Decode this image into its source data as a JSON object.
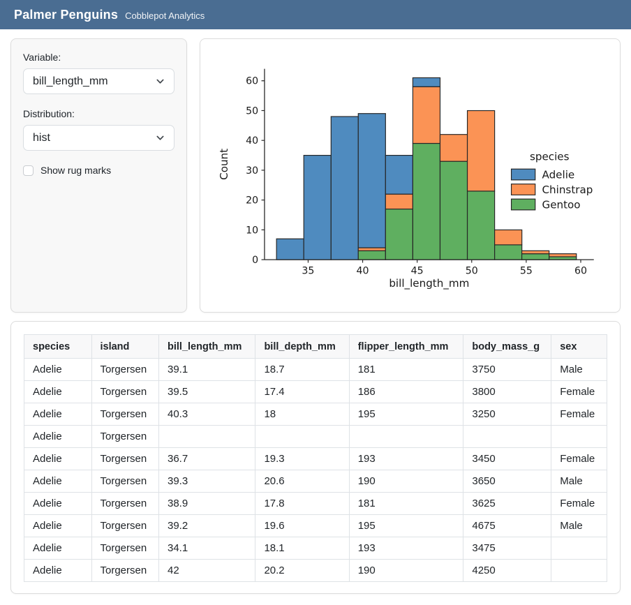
{
  "header": {
    "title": "Palmer Penguins",
    "subtitle": "Cobblepot Analytics"
  },
  "sidebar": {
    "variable_label": "Variable:",
    "variable_value": "bill_length_mm",
    "distribution_label": "Distribution:",
    "distribution_value": "hist",
    "rug_label": "Show rug marks",
    "rug_checked": false
  },
  "colors": {
    "navbar": "#4a6d92",
    "adelie": "#4f8bbf",
    "chinstrap": "#fb9355",
    "gentoo": "#5faf60",
    "bar_edge": "#262626",
    "axis": "#262626"
  },
  "chart_data": {
    "type": "bar",
    "subtype": "stacked-histogram",
    "title": "",
    "xlabel": "bill_length_mm",
    "ylabel": "Count",
    "bin_edges": [
      32.1,
      34.6,
      37.1,
      39.6,
      42.1,
      44.6,
      47.1,
      49.6,
      52.1,
      54.6,
      57.1,
      59.6
    ],
    "series": [
      {
        "name": "Adelie",
        "color": "#4f8bbf",
        "values": [
          7,
          35,
          48,
          45,
          13,
          3,
          0,
          0,
          0,
          0,
          0
        ]
      },
      {
        "name": "Chinstrap",
        "color": "#fb9355",
        "values": [
          0,
          0,
          0,
          1,
          5,
          19,
          9,
          27,
          5,
          1,
          1
        ]
      },
      {
        "name": "Gentoo",
        "color": "#5faf60",
        "values": [
          0,
          0,
          0,
          3,
          17,
          39,
          33,
          23,
          5,
          2,
          1
        ]
      }
    ],
    "stack_order_bottom_to_top": [
      "Gentoo",
      "Chinstrap",
      "Adelie"
    ],
    "legend_title": "species",
    "legend_position": "center right",
    "xlim": [
      31.0,
      61.2
    ],
    "ylim": [
      0,
      64
    ],
    "xticks": [
      35,
      40,
      45,
      50,
      55,
      60
    ],
    "yticks": [
      0,
      10,
      20,
      30,
      40,
      50,
      60
    ],
    "grid": false
  },
  "table": {
    "columns": [
      "species",
      "island",
      "bill_length_mm",
      "bill_depth_mm",
      "flipper_length_mm",
      "body_mass_g",
      "sex"
    ],
    "col_widths": [
      "11.5%",
      "11.5%",
      "16.5%",
      "16%",
      "19.5%",
      "15%",
      "9.5%"
    ],
    "rows": [
      [
        "Adelie",
        "Torgersen",
        "39.1",
        "18.7",
        "181",
        "3750",
        "Male"
      ],
      [
        "Adelie",
        "Torgersen",
        "39.5",
        "17.4",
        "186",
        "3800",
        "Female"
      ],
      [
        "Adelie",
        "Torgersen",
        "40.3",
        "18",
        "195",
        "3250",
        "Female"
      ],
      [
        "Adelie",
        "Torgersen",
        "",
        "",
        "",
        "",
        ""
      ],
      [
        "Adelie",
        "Torgersen",
        "36.7",
        "19.3",
        "193",
        "3450",
        "Female"
      ],
      [
        "Adelie",
        "Torgersen",
        "39.3",
        "20.6",
        "190",
        "3650",
        "Male"
      ],
      [
        "Adelie",
        "Torgersen",
        "38.9",
        "17.8",
        "181",
        "3625",
        "Female"
      ],
      [
        "Adelie",
        "Torgersen",
        "39.2",
        "19.6",
        "195",
        "4675",
        "Male"
      ],
      [
        "Adelie",
        "Torgersen",
        "34.1",
        "18.1",
        "193",
        "3475",
        ""
      ],
      [
        "Adelie",
        "Torgersen",
        "42",
        "20.2",
        "190",
        "4250",
        ""
      ]
    ]
  }
}
